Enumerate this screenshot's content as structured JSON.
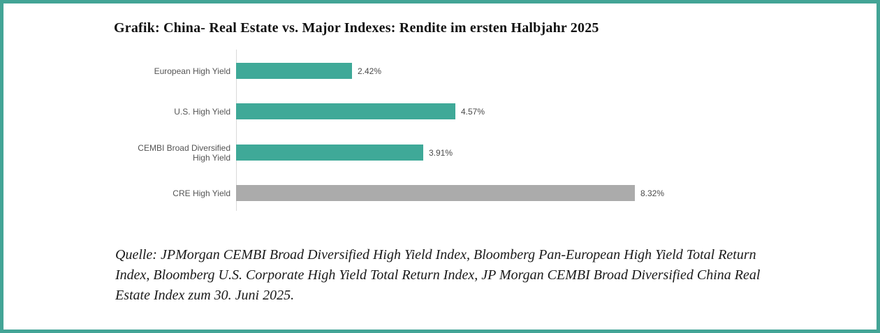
{
  "title": "Grafik: China- Real Estate vs. Major Indexes: Rendite im ersten Halbjahr 2025",
  "chart_data": {
    "type": "bar",
    "orientation": "horizontal",
    "title": "Grafik: China- Real Estate vs. Major Indexes: Rendite im ersten Halbjahr 2025",
    "categories": [
      "European High Yield",
      "U.S. High Yield",
      "CEMBI Broad Diversified High Yield",
      "CRE High Yield"
    ],
    "values": [
      2.42,
      4.57,
      3.91,
      8.32
    ],
    "value_labels": [
      "2.42%",
      "4.57%",
      "3.91%",
      "8.32%"
    ],
    "bar_colors": [
      "#3fa998",
      "#3fa998",
      "#3fa998",
      "#ababab"
    ],
    "xlabel": "",
    "ylabel": "",
    "xlim": [
      0,
      8.9
    ],
    "grid": false,
    "legend": false,
    "value_label_position": "outside-end"
  },
  "source_lines": [
    "Quelle: JPMorgan CEMBI Broad Diversified High Yield Index, Bloomberg Pan-European High Yield Total Return",
    "Index, Bloomberg U.S. Corporate High Yield Total Return Index, JP Morgan CEMBI Broad Diversified China Real",
    "Estate Index zum 30. Juni 2025."
  ],
  "colors": {
    "border": "#43a496",
    "accent_teal": "#3fa998",
    "neutral_gray": "#ababab",
    "axis_line": "#d9d9d9",
    "category_text": "#555555",
    "value_text": "#4a4a4a"
  }
}
